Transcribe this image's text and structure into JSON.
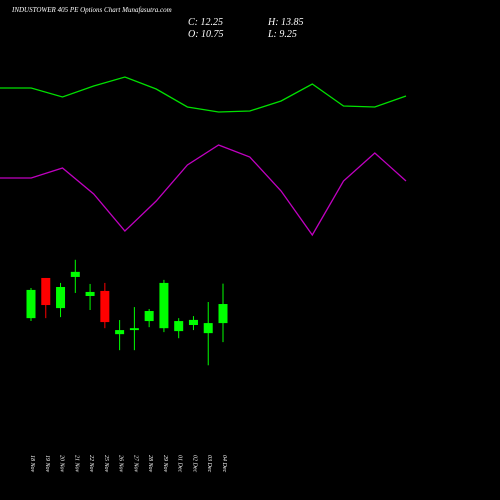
{
  "chart_data": {
    "type": "candlestick",
    "title": "INDUSTOWER 405 PE Options Chart Munafasutra.com",
    "ohlc_labels": [
      "C: 12.25",
      "H: 13.85",
      "O: 10.75",
      "L: 9.25"
    ],
    "categories": [
      "18 Nov",
      "19 Nov",
      "20 Nov",
      "21 Nov",
      "22 Nov",
      "25 Nov",
      "26 Nov",
      "27 Nov",
      "28 Nov",
      "29 Nov",
      "01 Dec",
      "02 Dec",
      "03 Dec",
      "04 Dec"
    ],
    "open": [
      11.14,
      14.3,
      11.93,
      14.38,
      12.88,
      13.28,
      9.88,
      10.2,
      10.91,
      10.35,
      10.12,
      10.6,
      9.96,
      10.75
    ],
    "high": [
      13.51,
      14.3,
      13.91,
      15.73,
      13.83,
      13.91,
      10.99,
      12.01,
      11.86,
      14.15,
      11.14,
      11.3,
      12.41,
      13.85
    ],
    "low": [
      10.91,
      11.14,
      11.22,
      13.12,
      11.78,
      10.35,
      8.62,
      8.62,
      10.43,
      10.04,
      9.56,
      10.2,
      7.43,
      9.25
    ],
    "close": [
      13.36,
      12.17,
      13.59,
      14.78,
      13.2,
      10.83,
      10.2,
      10.35,
      11.7,
      13.91,
      10.91,
      11.0,
      10.75,
      12.25
    ],
    "up_color": "#00ff00",
    "down_color": "#ff0000",
    "ylim": [
      4.7,
      16.5
    ],
    "indicators": {
      "ylim": [
        0,
        250
      ],
      "series": [
        {
          "color": "#00e000",
          "values": [
            162,
            162,
            153,
            164,
            173,
            161,
            143,
            138,
            139,
            149,
            166,
            144,
            143,
            154
          ]
        },
        {
          "color": "#c000c0",
          "values": [
            72,
            72,
            82,
            56,
            19,
            49,
            85,
            105,
            93,
            59,
            15,
            69,
            97,
            69
          ]
        }
      ]
    }
  }
}
